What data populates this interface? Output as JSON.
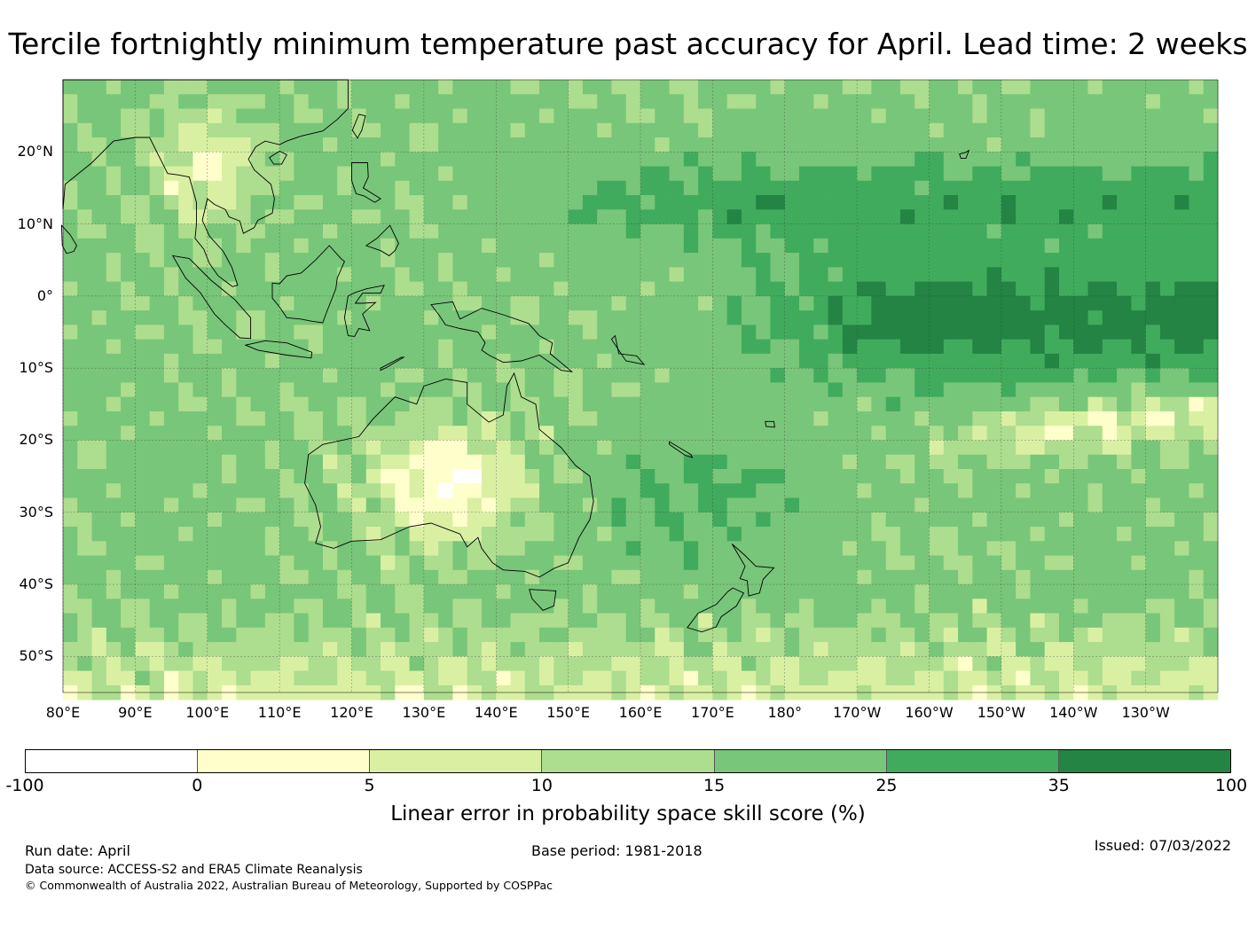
{
  "title": "Tercile fortnightly minimum temperature past accuracy for April. Lead time: 2 weeks",
  "map": {
    "lat_labels": [
      "20°N",
      "10°N",
      "0°",
      "10°S",
      "20°S",
      "30°S",
      "40°S",
      "50°S"
    ],
    "lon_labels": [
      "80°E",
      "90°E",
      "100°E",
      "110°E",
      "120°E",
      "130°E",
      "140°E",
      "150°E",
      "160°E",
      "170°E",
      "180°",
      "170°W",
      "160°W",
      "150°W",
      "140°W",
      "130°W"
    ],
    "lat_values": [
      20,
      10,
      0,
      -10,
      -20,
      -30,
      -40,
      -50
    ],
    "lon_values": [
      80,
      90,
      100,
      110,
      120,
      130,
      140,
      150,
      160,
      170,
      180,
      190,
      200,
      210,
      220,
      230
    ],
    "extent": {
      "lon_min": 80,
      "lon_max": 240,
      "lat_min": -55,
      "lat_max": 30
    },
    "land_border_color": "#000000"
  },
  "colorbar": {
    "ticks": [
      "-100",
      "0",
      "5",
      "10",
      "15",
      "25",
      "35",
      "100"
    ],
    "colors": [
      "#ffffff",
      "#ffffcc",
      "#d9f0a3",
      "#addd8e",
      "#78c679",
      "#41ab5d",
      "#238443"
    ],
    "label": "Linear error in probability space skill score (%)"
  },
  "footer": {
    "run_date": "Run date: April",
    "base_period": "Base period: 1981-2018",
    "issued": "Issued: 07/03/2022",
    "data_source": "Data source: ACCESS-S2 and ERA5 Climate Reanalysis",
    "copyright": "© Commonwealth of Australia 2022, Australian Bureau of Meteorology, Supported by COSPPac"
  }
}
